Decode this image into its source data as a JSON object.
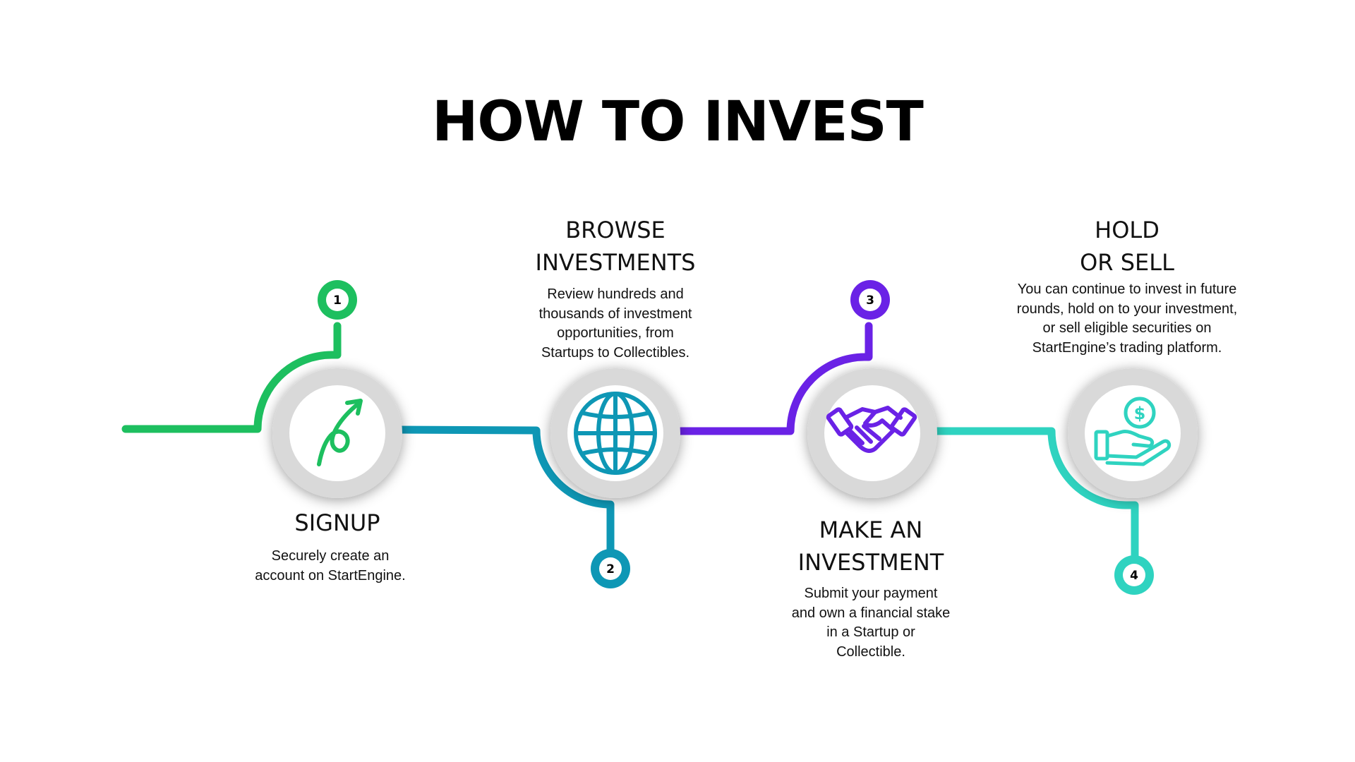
{
  "title": "HOW TO INVEST",
  "colors": {
    "step1": "#1dbf5f",
    "step2": "#0e97b5",
    "step3": "#6a22e6",
    "step4": "#2fd3c0",
    "circle_ring": "#d9d9d9",
    "circle_inner": "#ffffff"
  },
  "steps": [
    {
      "number": "1",
      "icon": "growth-arrow-icon",
      "title_lines": [
        "SIGNUP"
      ],
      "desc_lines": [
        "Securely create an",
        "account on StartEngine."
      ]
    },
    {
      "number": "2",
      "icon": "globe-icon",
      "title_lines": [
        "BROWSE",
        "INVESTMENTS"
      ],
      "desc_lines": [
        "Review hundreds and",
        "thousands of investment",
        "opportunities, from",
        "Startups to Collectibles."
      ]
    },
    {
      "number": "3",
      "icon": "handshake-icon",
      "title_lines": [
        "MAKE AN",
        "INVESTMENT"
      ],
      "desc_lines": [
        "Submit your payment",
        "and own a financial stake",
        "in a Startup or",
        "Collectible."
      ]
    },
    {
      "number": "4",
      "icon": "hand-coin-icon",
      "title_lines": [
        "HOLD",
        "OR SELL"
      ],
      "desc_lines": [
        "You can continue to invest in future",
        "rounds, hold on to your investment,",
        "or sell eligible securities on",
        "StartEngine’s trading platform."
      ]
    }
  ]
}
